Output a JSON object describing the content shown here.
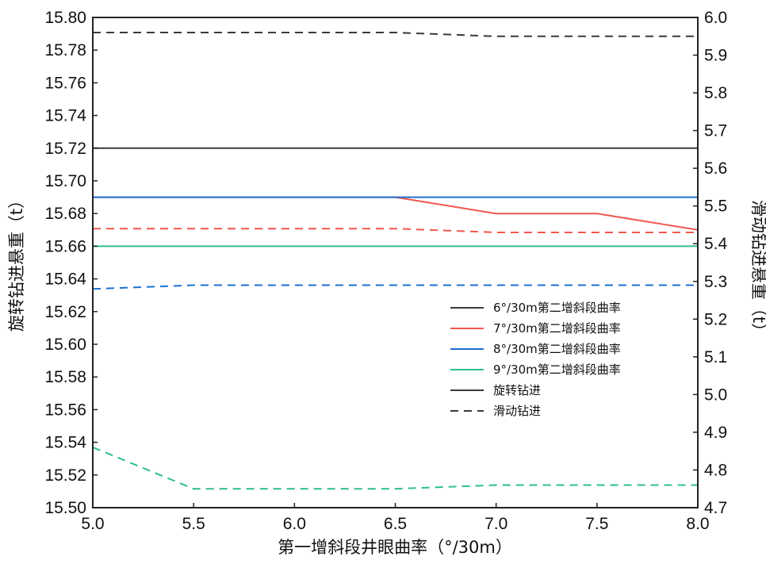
{
  "chart_data": {
    "type": "line",
    "xlabel": "第一增斜段井眼曲率（°/30m）",
    "ylabel_left": "旋转钻进悬重（t）",
    "ylabel_right": "滑动钻进悬重（t）",
    "x_ticks": [
      "5.0",
      "5.5",
      "6.0",
      "6.5",
      "7.0",
      "7.5",
      "8.0"
    ],
    "left_ticks": [
      "15.50",
      "15.52",
      "15.54",
      "15.56",
      "15.58",
      "15.60",
      "15.62",
      "15.64",
      "15.66",
      "15.68",
      "15.70",
      "15.72",
      "15.74",
      "15.76",
      "15.78",
      "15.80"
    ],
    "right_ticks": [
      "4.7",
      "4.8",
      "4.9",
      "5.0",
      "5.1",
      "5.2",
      "5.3",
      "5.4",
      "5.5",
      "5.6",
      "5.7",
      "5.8",
      "5.9",
      "6.0"
    ],
    "xlim": [
      5.0,
      8.0
    ],
    "ylim_left": [
      15.5,
      15.8
    ],
    "ylim_right": [
      4.7,
      6.0
    ],
    "grid": false,
    "legend_position": "center-right",
    "series": [
      {
        "name": "6°/30m第二增斜段曲率",
        "color": "#3a3a3a",
        "axis": "left",
        "dash": false,
        "x": [
          5.0,
          8.0
        ],
        "values": [
          15.72,
          15.72
        ]
      },
      {
        "name": "7°/30m第二增斜段曲率",
        "color": "#f0574f",
        "axis": "left",
        "dash": false,
        "x": [
          5.0,
          6.5,
          7.0,
          7.5,
          8.0
        ],
        "values": [
          15.69,
          15.69,
          15.68,
          15.68,
          15.67
        ]
      },
      {
        "name": "8°/30m第二增斜段曲率",
        "color": "#1f6fd1",
        "axis": "left",
        "dash": false,
        "x": [
          5.0,
          8.0
        ],
        "values": [
          15.69,
          15.69
        ]
      },
      {
        "name": "9°/30m第二增斜段曲率",
        "color": "#2fbf86",
        "axis": "left",
        "dash": false,
        "x": [
          5.0,
          8.0
        ],
        "values": [
          15.66,
          15.66
        ]
      },
      {
        "name": "",
        "color": "#3a3a3a",
        "axis": "right",
        "dash": true,
        "x": [
          5.0,
          5.5,
          6.0,
          6.5,
          7.0,
          7.5,
          8.0
        ],
        "values": [
          5.96,
          5.96,
          5.96,
          5.96,
          5.95,
          5.95,
          5.95
        ]
      },
      {
        "name": "",
        "color": "#f0574f",
        "axis": "right",
        "dash": true,
        "x": [
          5.0,
          5.5,
          6.0,
          6.5,
          7.0,
          7.5,
          8.0
        ],
        "values": [
          5.44,
          5.44,
          5.44,
          5.44,
          5.43,
          5.43,
          5.43
        ]
      },
      {
        "name": "",
        "color": "#1f6fd1",
        "axis": "right",
        "dash": true,
        "x": [
          5.0,
          5.5,
          6.0,
          6.5,
          7.0,
          7.5,
          8.0
        ],
        "values": [
          5.28,
          5.29,
          5.29,
          5.29,
          5.29,
          5.29,
          5.29
        ]
      },
      {
        "name": "",
        "color": "#2fbf86",
        "axis": "right",
        "dash": true,
        "x": [
          5.0,
          5.5,
          6.0,
          6.5,
          7.0,
          7.5,
          8.0
        ],
        "values": [
          4.86,
          4.75,
          4.75,
          4.75,
          4.76,
          4.76,
          4.76
        ]
      }
    ],
    "legend": [
      {
        "label": "6°/30m第二增斜段曲率",
        "color": "#3a3a3a",
        "dash": false
      },
      {
        "label": "7°/30m第二增斜段曲率",
        "color": "#f0574f",
        "dash": false
      },
      {
        "label": "8°/30m第二增斜段曲率",
        "color": "#1f6fd1",
        "dash": false
      },
      {
        "label": "9°/30m第二增斜段曲率",
        "color": "#2fbf86",
        "dash": false
      },
      {
        "label": "旋转钻进",
        "color": "#3a3a3a",
        "dash": false
      },
      {
        "label": "滑动钻进",
        "color": "#3a3a3a",
        "dash": true
      }
    ]
  }
}
